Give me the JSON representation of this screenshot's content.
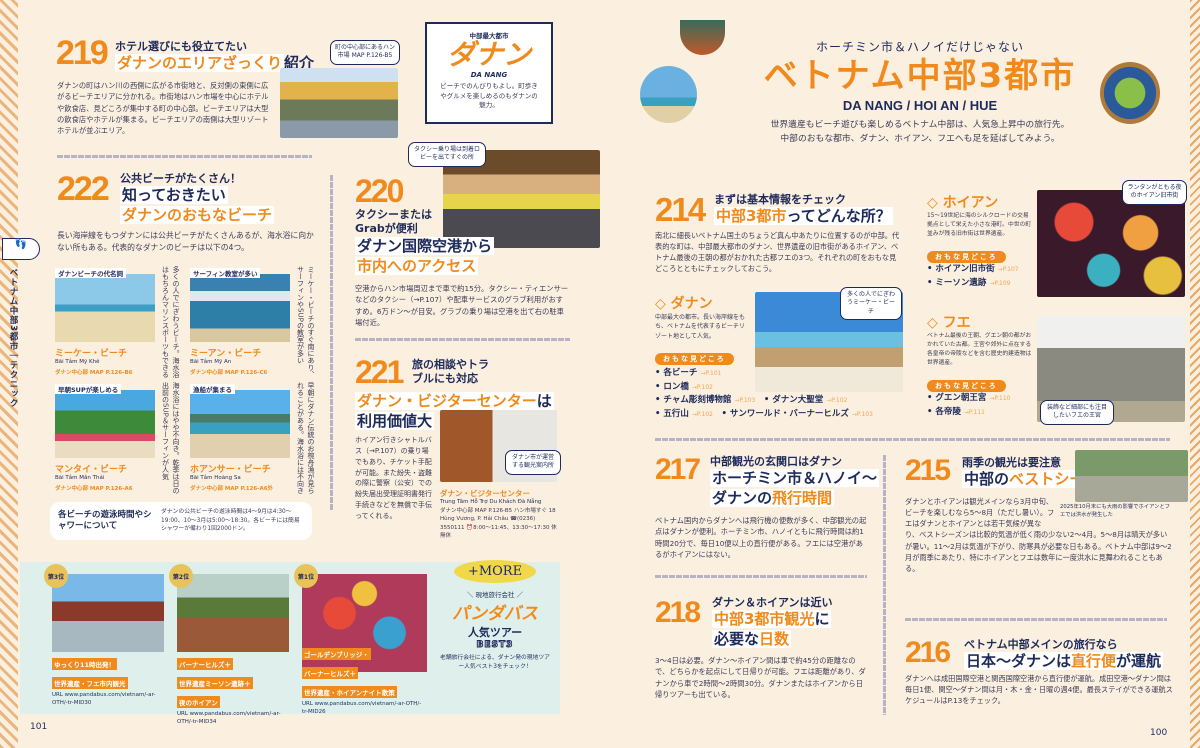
{
  "colors": {
    "accent": "#f08a1c",
    "navy": "#1e2a5a",
    "background": "#fbf0e0",
    "tour_box": "#dff0ec"
  },
  "side_tab": {
    "icon": "footprints-icon",
    "label": "ベトナム中部3都市｜テクニック"
  },
  "s219": {
    "num": "219",
    "kicker": "ホテル選びにも役立てたい",
    "title_o": "ダナンのエリアざっくり",
    "title_n": "紹介",
    "body": "ダナンの町はハン川の西側に広がる市街地と、反対側の東側に広がるビーチエリアに分かれる。市街地はハン市場を中心にホテルや飲食店、見どころが集中する町の中心部。ビーチエリアは大型の飲食店やホテルが集まる。ビーチエリアの南側は大型リゾートホテルが並ぶエリア。",
    "bubble": "町の中心部にあるハン市場 MAP P.126-B5"
  },
  "danang_card": {
    "kicker": "中部最大都市",
    "title": "ダナン",
    "en": "DA NANG",
    "body": "ビーチでのんびりもよし。町歩きやグルメを楽しめるのもダナンの魅力。"
  },
  "s222": {
    "num": "222",
    "kicker": "公共ビーチがたくさん！",
    "title1": "知っておきたい",
    "title2": "ダナンのおもなビーチ",
    "body": "長い海岸線をもつダナンには公共ビーチがたくさんあるが、海水浴に向かない所もある。代表的なダナンのビーチは以下の4つ。",
    "beaches": [
      {
        "label": "ダナンビーチの代名詞",
        "name": "ミーケー・ビーチ",
        "vn": "Bãi Tắm Mỹ Khê",
        "area": "ダナン中心部 MAP P.126-B6",
        "desc": "多くの人でにぎわうビーチ。海水浴はもちろんマリンスポーツもできる"
      },
      {
        "label": "サーフィン教室が多い",
        "name": "ミーアン・ビーチ",
        "vn": "Bãi Tắm Mỹ An",
        "area": "ダナン中心部 MAP P.126-C6",
        "desc": "ミーケー・ビーチのすぐ南にあり、サーフィンやSUPの教室が多い"
      },
      {
        "label": "早朝SUPが楽しめる",
        "name": "マンタイ・ビーチ",
        "vn": "Bãi Tắm Mân Thái",
        "area": "ダナン中心部 MAP P.126-A6",
        "desc": "海水浴にはやや不向き。乾季は日の出前のSUP＆サーフィンが人気"
      },
      {
        "label": "漁船が集まる",
        "name": "ホアンサー・ビーチ",
        "vn": "Bãi Tắm Hoàng Sa",
        "area": "ダナン中心部 MAP P.126-A6外",
        "desc": "早朝にダナン伝統のお椀舟漁が見られることがある。海水浴には不向き"
      }
    ],
    "info_title": "各ビーチの遊泳時間やシャワーについて",
    "info_body": "ダナンの公共ビーチの遊泳時間は4〜9月は4:30〜19:00、10〜3月は5:00〜18:30。各ビーチには簡易シャワーが備わり1回2000ドン。"
  },
  "s220": {
    "num": "220",
    "kicker": "タクシーまたはGrabが便利",
    "title1": "ダナン国際空港から",
    "title2": "市内へのアクセス",
    "body": "空港からハン市場周辺まで車で約15分。タクシー・ティエンサーなどのタクシー（→P.107）や配車サービスのグラブ利用がおすすめ。6万ドン〜が目安。グラブの乗り場は空港を出て右の駐車場付近。",
    "bubble": "タクシー乗り場は到着ロビーを出てすぐの所"
  },
  "s221": {
    "num": "221",
    "kicker": "旅の相談やトラブルにも対応",
    "title_o": "ダナン・ビジターセンター",
    "title_n": "は",
    "title2": "利用価値大",
    "body": "ホイアン行きシャトルバス（→P.107）の乗り場でもあり、チケット手配が可能。また紛失・盗難の際に警察（公安）での紛失届出受理証明書発行手続きなどを無償で手伝ってくれる。",
    "bubble": "ダナン市が運営する観光案内所",
    "place": "ダナン・ビジターセンター",
    "place_vn": "Trung Tâm Hỗ Trợ Du Khách Đà Nẵng",
    "place_info": "ダナン中心部 MAP P.126-B5 ハン市場すぐ 18 Hùng Vương, P. Hải Châu ☎(0236) 3550111 ⏰8:00〜11:45、13:30〜17:30 休無休"
  },
  "tours": {
    "more": "+MORE",
    "kicker": "＼ 現地旅行会社 ／",
    "name": "パンダバス",
    "title": "人気ツアー",
    "best": "BEST3",
    "body": "老舗旅行会社による、ダナン発の現地ツアー人気ベスト3をチェック！",
    "items": [
      {
        "rank": "第3位",
        "caption": [
          "ゆっくり11時出発！",
          "世界遺産・フエ市内観光"
        ],
        "url": "URL www.pandabus.com/vietnam/-ar-OTH/-tr-MID30"
      },
      {
        "rank": "第2位",
        "caption": [
          "バーナーヒルズ＋",
          "世界遺産ミーソン遺跡＋",
          "夜のホイアン"
        ],
        "url": "URL www.pandabus.com/vietnam/-ar-OTH/-tr-MID34"
      },
      {
        "rank": "第1位",
        "caption": [
          "ゴールデンブリッジ・",
          "バーナーヒルズ＋",
          "世界遺産・ホイアンナイト散策"
        ],
        "url": "URL www.pandabus.com/vietnam/-ar-OTH/-tr-MID26"
      }
    ]
  },
  "page_left": "101",
  "page_right": "100",
  "hero": {
    "kicker": "ホーチミン市＆ハノイだけじゃない",
    "title": "ベトナム中部3都市",
    "en": "DA NANG / HOI AN / HUE",
    "body1": "世界遺産もビーチ遊びも楽しめるベトナム中部は、人気急上昇中の旅行先。",
    "body2": "中部のおもな都市、ダナン、ホイアン、フエへも足を延ばしてみよう。"
  },
  "s214": {
    "num": "214",
    "kicker": "まずは基本情報をチェック",
    "title_o": "中部3都市",
    "title_n": "ってどんな所？",
    "body": "南北に細長いベトナム国土のちょうど真ん中あたりに位置するのが中部。代表的な町は、中部最大都市のダナン、世界遺産の旧市街があるホイアン、ベトナム最後の王朝の都がおかれた古都フエの3つ。それぞれの町をおもな見どころとともにチェックしておこう。",
    "tag": "おもな見どころ",
    "danang": {
      "name": "◇ ダナン",
      "body": "中部最大の都市。長い海岸線をもち、ベトナムを代表するビーチリゾート地として人気。",
      "bubble": "多くの人でにぎわうミーケー・ビーチ",
      "spots": [
        [
          "各ビーチ",
          "→P.101"
        ],
        [
          "ロン橋",
          "→P.102"
        ],
        [
          "チャム彫刻博物館",
          "→P.103"
        ],
        [
          "ダナン大聖堂",
          "→P.102"
        ],
        [
          "五行山",
          "→P.102"
        ],
        [
          "サンワールド・バーナーヒルズ",
          "→P.103"
        ]
      ]
    },
    "hoian": {
      "name": "◇ ホイアン",
      "body": "15〜19世紀に海のシルクロードの交易拠点として栄えた小さな港町。中世の町並みが残る旧市街は世界遺産。",
      "bubble": "ランタンがともる夜のホイアン旧市街",
      "spots": [
        [
          "ホイアン旧市街",
          "→P.107"
        ],
        [
          "ミーソン遺跡",
          "→P.109"
        ]
      ]
    },
    "hue": {
      "name": "◇ フエ",
      "body": "ベトナム最後の王朝、グエン朝の都がおかれていた古都。王宮や郊外に点在する各皇帝の帝陵などを含む歴史的建造物は世界遺産。",
      "bubble": "装飾など細部にも注目したいフエの王宮",
      "spots": [
        [
          "グエン朝王宮",
          "→P.110"
        ],
        [
          "各帝陵",
          "→P.111"
        ]
      ]
    }
  },
  "s217": {
    "num": "217",
    "kicker": "中部観光の玄関口はダナン",
    "title1": "ホーチミン市＆ハノイ〜",
    "title2_n": "ダナンの",
    "title2_o": "飛行時間",
    "body": "ベトナム国内からダナンへは飛行機の便数が多く、中部観光の起点はダナンが便利。ホーチミン市、ハノイともに飛行時間は約1時間20分で、毎日10便以上の直行便がある。フエには空港があるがホイアンにはない。"
  },
  "s218": {
    "num": "218",
    "kicker": "ダナン＆ホイアンは近い",
    "title1_o": "中部3都市観光",
    "title1_n": "に",
    "title2_n": "必要な",
    "title2_o": "日数",
    "body": "3〜4日は必要。ダナン〜ホイアン間は車で約45分の距離なので、どちらかを起点にして日帰りが可能。フエは距離があり、ダナンから車で2時間〜2時間30分。ダナンまたはホイアンから日帰りツアーも出ている。"
  },
  "s215": {
    "num": "215",
    "kicker": "雨季の観光は要注意",
    "title_n": "中部の",
    "title_o": "ベストシーズン",
    "body": "ダナンとホイアンは観光メインなら3月中旬、ビーチを楽しむなら5〜8月（ただし暑い）。フエはダナンとホイアンとは若干気候が異なり、ベストシーズンは比較的気温が低く雨の少ない2〜4月。5〜8月は晴天が多いが暑い。11〜2月は気温が下がり、防寒具が必要な日もある。ベトナム中部は9〜2月が雨季にあたり、特にホイアンとフエは数年に一度洪水に見舞われることもある。",
    "caption": "2025年10月末にも大雨の影響でホイアンとフエでは洪水が発生した"
  },
  "s216": {
    "num": "216",
    "kicker": "ベトナム中部メインの旅行なら",
    "title_n1": "日本〜ダナンは",
    "title_o": "直行便",
    "title_n2": "が運航",
    "body": "ダナンへは成田国際空港と関西国際空港から直行便が運航。成田空港〜ダナン間は毎日1便、関空〜ダナン間は月・木・金・日曜の週4便。最長ステイができる運航スケジュールはP.13をチェック。"
  }
}
